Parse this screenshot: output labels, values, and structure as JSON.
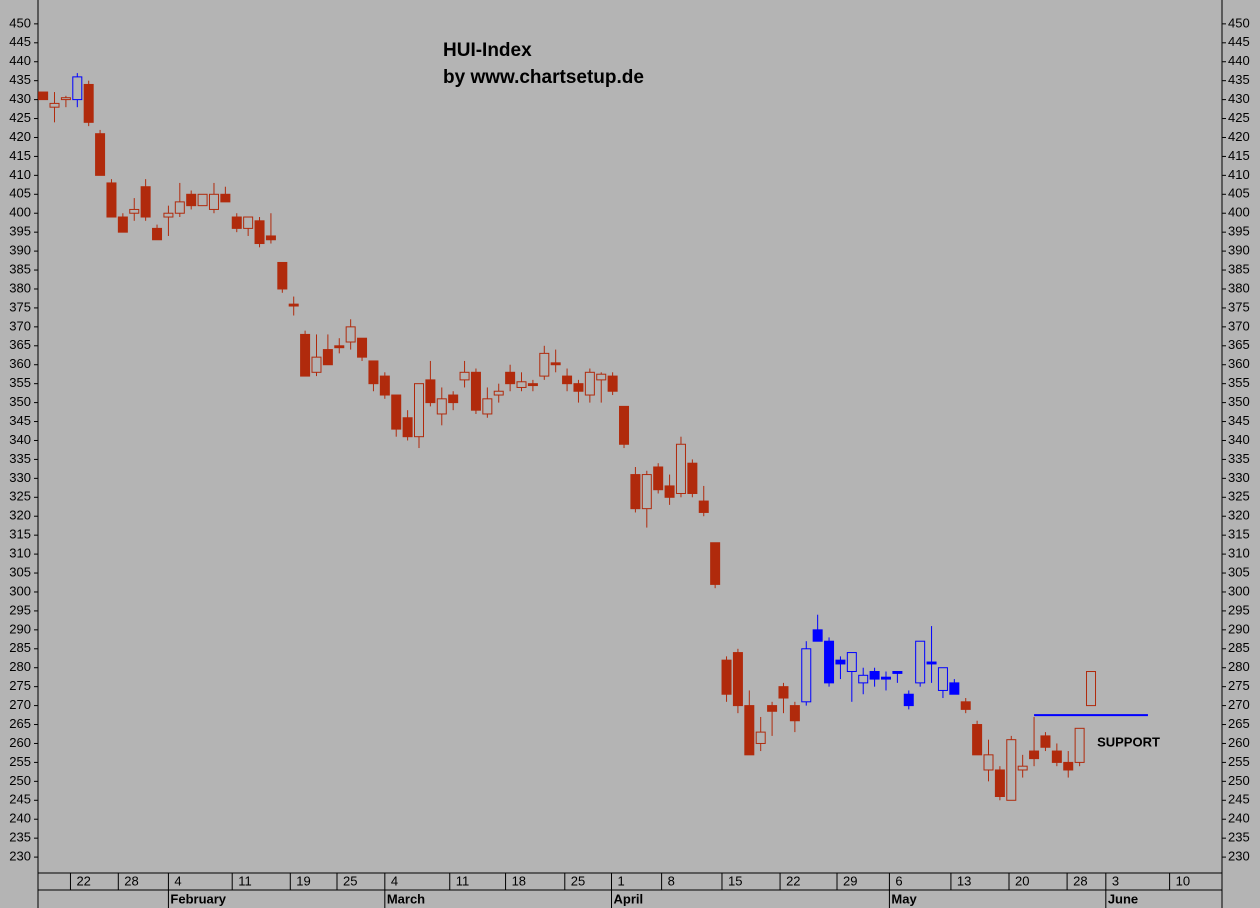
{
  "chart_data": {
    "type": "candlestick",
    "title": "HUI-Index",
    "subtitle": "by www.chartsetup.de",
    "x": [
      0,
      1,
      2,
      3,
      4,
      5,
      6,
      7,
      8,
      9,
      10,
      11,
      12,
      13,
      14,
      15,
      16,
      17,
      18,
      19,
      20,
      21,
      22,
      23,
      24,
      25,
      26,
      27,
      28,
      29,
      30,
      31,
      32,
      33,
      34,
      35,
      36,
      37,
      38,
      39,
      40,
      41,
      42,
      43,
      44,
      45,
      46,
      47,
      48,
      49,
      50,
      51,
      52,
      53,
      54,
      55,
      56,
      57,
      58,
      59,
      60,
      61,
      62,
      63,
      64,
      65,
      66,
      67,
      68,
      69,
      70,
      71,
      72,
      73,
      74,
      75,
      76,
      77,
      78,
      79,
      80,
      81,
      82,
      83,
      84,
      85,
      86,
      87,
      88,
      89,
      90,
      91,
      92
    ],
    "open": [
      432,
      428,
      430,
      430,
      434,
      421,
      408,
      399,
      400,
      407,
      396,
      399,
      400,
      405,
      402,
      401,
      405,
      399,
      396,
      398,
      394,
      387,
      376,
      368,
      358,
      364,
      365,
      366,
      367,
      361,
      357,
      352,
      346,
      341,
      356,
      347,
      352,
      356,
      358,
      347,
      352,
      358,
      354,
      355,
      357,
      360.5,
      357,
      355,
      352,
      356,
      357,
      349,
      331,
      322,
      333,
      328,
      326,
      334,
      324,
      313,
      282,
      284,
      270,
      260,
      270,
      275,
      270,
      271,
      290,
      287,
      282,
      279,
      276,
      279,
      277.5,
      279,
      273,
      276,
      281.5,
      274,
      276,
      271,
      265,
      253,
      253,
      245,
      253,
      258,
      262,
      258,
      255,
      255,
      270
    ],
    "high": [
      432,
      432,
      431,
      437,
      435,
      422,
      409,
      400,
      404,
      409,
      397,
      402,
      408,
      406,
      405,
      408,
      407,
      400,
      399,
      399,
      400,
      387,
      378,
      369,
      368,
      368,
      367,
      372,
      367,
      361,
      358,
      352,
      348,
      355,
      361,
      354,
      353,
      361,
      359,
      354,
      355,
      360,
      358,
      356,
      365,
      364,
      359,
      356,
      359,
      358,
      358,
      349,
      333,
      332,
      334,
      331,
      341,
      335,
      328,
      313,
      283,
      285,
      274,
      267,
      271,
      276,
      271,
      287,
      294,
      288,
      283,
      284,
      280,
      280,
      279,
      279,
      274,
      287,
      291,
      280,
      277,
      272,
      266,
      261,
      254,
      262,
      257,
      267,
      263,
      260,
      258,
      264,
      279
    ],
    "low": [
      430,
      424,
      428,
      428,
      423,
      410,
      399,
      395,
      398,
      398,
      393,
      394,
      399,
      401,
      402,
      400,
      403,
      395,
      394,
      391,
      392,
      379,
      373,
      357,
      357,
      360,
      363,
      364,
      361,
      353,
      351,
      341,
      340,
      338,
      349,
      344,
      348,
      354,
      347,
      346,
      350,
      353,
      353,
      353,
      356,
      358,
      353,
      350,
      350,
      350,
      352,
      338,
      321,
      317,
      326,
      323,
      325,
      325,
      320,
      301,
      271,
      268,
      257,
      258,
      262,
      268,
      263,
      270,
      287,
      275,
      277,
      271,
      273,
      275,
      274,
      276,
      269,
      275,
      276,
      272,
      273,
      268,
      257,
      250,
      245,
      245,
      251,
      254,
      258,
      254,
      251,
      254,
      270
    ],
    "close": [
      430,
      429,
      430.5,
      436,
      424,
      410,
      399,
      395,
      401,
      399,
      393,
      400,
      403,
      402,
      405,
      405,
      403,
      396,
      399,
      392,
      393,
      380,
      375.5,
      357,
      362,
      360,
      364.5,
      370,
      362,
      355,
      352,
      343,
      341,
      355,
      350,
      351,
      350,
      358,
      348,
      351,
      353,
      355,
      355.5,
      354.5,
      363,
      360,
      355,
      353,
      358,
      357.5,
      353,
      339,
      322,
      331,
      327,
      325,
      339,
      326,
      321,
      302,
      273,
      270,
      257,
      263,
      268.5,
      272,
      266,
      285,
      287,
      276,
      281,
      284,
      278,
      277,
      277,
      278.5,
      270,
      287,
      281,
      280,
      273,
      269,
      257,
      257,
      246,
      261,
      254,
      256,
      259,
      255,
      253,
      264,
      279
    ],
    "colors": [
      "#b02a0c",
      "#b02a0c",
      "#b02a0c",
      "#0000ff",
      "#b02a0c",
      "#b02a0c",
      "#b02a0c",
      "#b02a0c",
      "#b02a0c",
      "#b02a0c",
      "#b02a0c",
      "#b02a0c",
      "#b02a0c",
      "#b02a0c",
      "#b02a0c",
      "#b02a0c",
      "#b02a0c",
      "#b02a0c",
      "#b02a0c",
      "#b02a0c",
      "#b02a0c",
      "#b02a0c",
      "#b02a0c",
      "#b02a0c",
      "#b02a0c",
      "#b02a0c",
      "#b02a0c",
      "#b02a0c",
      "#b02a0c",
      "#b02a0c",
      "#b02a0c",
      "#b02a0c",
      "#b02a0c",
      "#b02a0c",
      "#b02a0c",
      "#b02a0c",
      "#b02a0c",
      "#b02a0c",
      "#b02a0c",
      "#b02a0c",
      "#b02a0c",
      "#b02a0c",
      "#b02a0c",
      "#b02a0c",
      "#b02a0c",
      "#b02a0c",
      "#b02a0c",
      "#b02a0c",
      "#b02a0c",
      "#b02a0c",
      "#b02a0c",
      "#b02a0c",
      "#b02a0c",
      "#b02a0c",
      "#b02a0c",
      "#b02a0c",
      "#b02a0c",
      "#b02a0c",
      "#b02a0c",
      "#b02a0c",
      "#b02a0c",
      "#b02a0c",
      "#b02a0c",
      "#b02a0c",
      "#b02a0c",
      "#b02a0c",
      "#b02a0c",
      "#0000ff",
      "#0000ff",
      "#0000ff",
      "#0000ff",
      "#0000ff",
      "#0000ff",
      "#0000ff",
      "#0000ff",
      "#0000ff",
      "#0000ff",
      "#0000ff",
      "#0000ff",
      "#0000ff",
      "#0000ff",
      "#b02a0c",
      "#b02a0c",
      "#b02a0c",
      "#b02a0c",
      "#b02a0c",
      "#b02a0c",
      "#b02a0c",
      "#b02a0c",
      "#b02a0c",
      "#b02a0c",
      "#b02a0c",
      "#b02a0c"
    ],
    "xlim": [
      -0.45,
      103.5
    ],
    "xticks": [
      {
        "value": 2.4,
        "label": "22"
      },
      {
        "value": 6.6,
        "label": "28"
      },
      {
        "value": 11,
        "label": "4"
      },
      {
        "value": 16.6,
        "label": "11"
      },
      {
        "value": 21.7,
        "label": "19"
      },
      {
        "value": 25.8,
        "label": "25"
      },
      {
        "value": 30,
        "label": "4"
      },
      {
        "value": 35.7,
        "label": "11"
      },
      {
        "value": 40.6,
        "label": "18"
      },
      {
        "value": 45.8,
        "label": "25"
      },
      {
        "value": 49.9,
        "label": "1"
      },
      {
        "value": 54.3,
        "label": "8"
      },
      {
        "value": 59.6,
        "label": "15"
      },
      {
        "value": 64.7,
        "label": "22"
      },
      {
        "value": 69.7,
        "label": "29"
      },
      {
        "value": 74.3,
        "label": "6"
      },
      {
        "value": 79.7,
        "label": "13"
      },
      {
        "value": 84.8,
        "label": "20"
      },
      {
        "value": 89.9,
        "label": "28"
      },
      {
        "value": 93.3,
        "label": "3"
      },
      {
        "value": 98.9,
        "label": "10"
      }
    ],
    "month_ticks": [
      {
        "value": 11,
        "label": "February"
      },
      {
        "value": 30,
        "label": "March"
      },
      {
        "value": 49.9,
        "label": "April"
      },
      {
        "value": 74.3,
        "label": "May"
      },
      {
        "value": 93.3,
        "label": "June"
      }
    ],
    "ylim": [
      225.8,
      456.3
    ],
    "yticks": [
      230,
      235,
      240,
      245,
      250,
      255,
      260,
      265,
      270,
      275,
      280,
      285,
      290,
      295,
      300,
      305,
      310,
      315,
      320,
      325,
      330,
      335,
      340,
      345,
      350,
      355,
      360,
      365,
      370,
      375,
      380,
      385,
      390,
      395,
      400,
      405,
      410,
      415,
      420,
      425,
      430,
      435,
      440,
      445,
      450
    ],
    "support": {
      "label": "SUPPORT",
      "value": 267.5,
      "x": [
        87,
        97
      ],
      "color": "#0000ff"
    }
  }
}
